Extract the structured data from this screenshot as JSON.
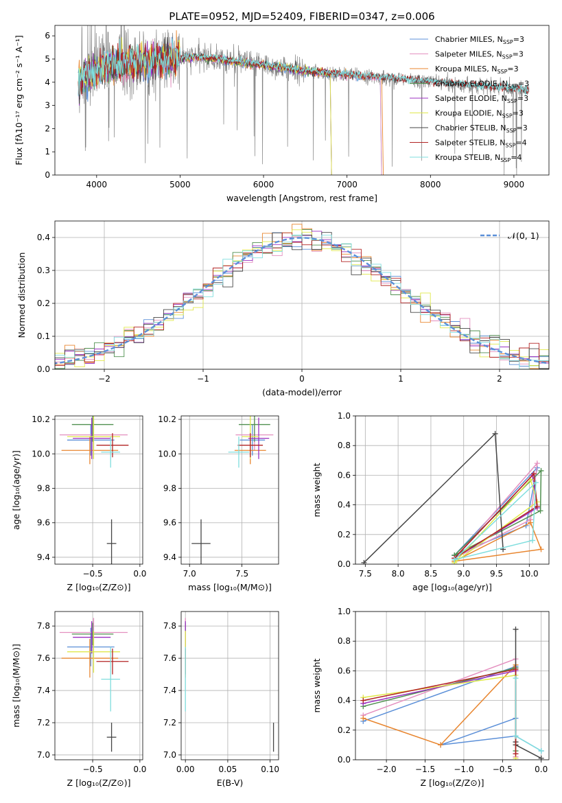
{
  "chart_data": [
    {
      "type": "line",
      "id": "spectrum",
      "title": "PLATE=0952, MJD=52409, FIBERID=0347, z=0.006",
      "xlabel": "wavelength [Angstrom, rest frame]",
      "ylabel": "Flux [fλ10⁻¹⁷ erg cm⁻² s⁻¹ A⁻¹]",
      "xlim": [
        3500,
        9420
      ],
      "ylim": [
        0,
        6.45
      ],
      "xticks": [
        4000,
        5000,
        6000,
        7000,
        8000,
        9000
      ],
      "yticks": [
        0,
        1,
        2,
        3,
        4,
        5,
        6
      ],
      "legend_position": "top-right",
      "data_trace": {
        "x_range": [
          3780,
          9180
        ],
        "color": "#808080"
      },
      "series": [
        {
          "name": "Chabrier MILES, NSSP=3",
          "label_main": "Chabrier MILES, N",
          "label_sub": "SSP",
          "label_tail": "=3",
          "color": "#5b8fd8",
          "x_end": 7400
        },
        {
          "name": "Salpeter MILES, NSSP=3",
          "label_main": "Salpeter MILES, N",
          "label_sub": "SSP",
          "label_tail": "=3",
          "color": "#e48fbf",
          "x_end": 7400
        },
        {
          "name": "Kroupa MILES, NSSP=3",
          "label_main": "Kroupa MILES, N",
          "label_sub": "SSP",
          "label_tail": "=3",
          "color": "#e8852e",
          "x_end": 7420
        },
        {
          "name": "Chabrier ELODIE, NSSP=3",
          "label_main": "Chabrier ELODIE, N",
          "label_sub": "SSP",
          "label_tail": "=3",
          "color": "#4f8f4f",
          "x_end": 6800
        },
        {
          "name": "Salpeter ELODIE, NSSP=3",
          "label_main": "Salpeter ELODIE, N",
          "label_sub": "SSP",
          "label_tail": "=3",
          "color": "#9b30c0",
          "x_end": 6800
        },
        {
          "name": "Kroupa ELODIE, NSSP=3",
          "label_main": "Kroupa ELODIE, N",
          "label_sub": "SSP",
          "label_tail": "=3",
          "color": "#e0e84a",
          "x_end": 6800
        },
        {
          "name": "Chabrier STELIB, NSSP=3",
          "label_main": "Chabrier STELIB, N",
          "label_sub": "SSP",
          "label_tail": "=3",
          "color": "#444444",
          "x_end": 9180
        },
        {
          "name": "Salpeter STELIB, NSSP=4",
          "label_main": "Salpeter STELIB, N",
          "label_sub": "SSP",
          "label_tail": "=4",
          "color": "#b22222",
          "x_end": 9180
        },
        {
          "name": "Kroupa STELIB, NSSP=4",
          "label_main": "Kroupa STELIB, N",
          "label_sub": "SSP",
          "label_tail": "=4",
          "color": "#7fdede",
          "x_end": 9180
        }
      ]
    },
    {
      "type": "histogram",
      "id": "residuals",
      "xlabel": "(data-model)/error",
      "ylabel": "Normed distribution",
      "xlim": [
        -2.5,
        2.5
      ],
      "ylim": [
        0,
        0.45
      ],
      "xticks": [
        -2,
        -1,
        0,
        1,
        2
      ],
      "yticks": [
        0.0,
        0.1,
        0.2,
        0.3,
        0.4
      ],
      "bin_width": 0.1,
      "grid": true,
      "legend_position": "top-right",
      "reference_curve": {
        "name": "N(0,1)",
        "label": "𝒩(0, 1)",
        "color": "#5b8fd8",
        "style": "dashed"
      }
    },
    {
      "type": "scatter",
      "id": "age-vs-z",
      "xlabel": "Z [log₁₀(Z/Z⊙)]",
      "ylabel": "age  [log₁₀(age/yr)]",
      "xlim": [
        -0.9,
        0.03
      ],
      "ylim": [
        9.36,
        10.22
      ],
      "xticks": [
        -0.5,
        0.0
      ],
      "yticks": [
        9.4,
        9.6,
        9.8,
        10.0,
        10.2
      ],
      "grid": true,
      "points": [
        {
          "x": -0.52,
          "y": 10.08,
          "xerr": 0.25,
          "yerr": 0.09,
          "color": "#5b8fd8"
        },
        {
          "x": -0.49,
          "y": 10.11,
          "xerr": 0.36,
          "yerr": 0.09,
          "color": "#e48fbf"
        },
        {
          "x": -0.53,
          "y": 10.02,
          "xerr": 0.3,
          "yerr": 0.08,
          "color": "#e8852e"
        },
        {
          "x": -0.5,
          "y": 10.17,
          "xerr": 0.22,
          "yerr": 0.1,
          "color": "#4f8f4f"
        },
        {
          "x": -0.51,
          "y": 10.09,
          "xerr": 0.2,
          "yerr": 0.12,
          "color": "#9b30c0"
        },
        {
          "x": -0.49,
          "y": 10.1,
          "xerr": 0.28,
          "yerr": 0.13,
          "color": "#e0e84a"
        },
        {
          "x": -0.3,
          "y": 9.48,
          "xerr": 0.05,
          "yerr": 0.14,
          "color": "#444444"
        },
        {
          "x": -0.29,
          "y": 10.05,
          "xerr": 0.17,
          "yerr": 0.07,
          "color": "#b22222"
        },
        {
          "x": -0.31,
          "y": 10.01,
          "xerr": 0.1,
          "yerr": 0.09,
          "color": "#7fdede"
        }
      ]
    },
    {
      "type": "scatter",
      "id": "age-vs-mass",
      "xlabel": "mass [log₁₀(M/M⊙)]",
      "ylabel": "",
      "xlim": [
        6.92,
        7.85
      ],
      "ylim": [
        9.36,
        10.22
      ],
      "xticks": [
        7.0,
        7.5
      ],
      "yticks": [
        9.4,
        9.6,
        9.8,
        10.0,
        10.2
      ],
      "grid": true,
      "points": [
        {
          "x": 7.6,
          "y": 10.08,
          "xerr": 0.12,
          "yerr": 0.09,
          "color": "#5b8fd8"
        },
        {
          "x": 7.62,
          "y": 10.11,
          "xerr": 0.18,
          "yerr": 0.09,
          "color": "#e48fbf"
        },
        {
          "x": 7.58,
          "y": 10.02,
          "xerr": 0.15,
          "yerr": 0.08,
          "color": "#e8852e"
        },
        {
          "x": 7.62,
          "y": 10.17,
          "xerr": 0.15,
          "yerr": 0.1,
          "color": "#4f8f4f"
        },
        {
          "x": 7.66,
          "y": 10.09,
          "xerr": 0.1,
          "yerr": 0.12,
          "color": "#9b30c0"
        },
        {
          "x": 7.58,
          "y": 10.1,
          "xerr": 0.08,
          "yerr": 0.13,
          "color": "#e0e84a"
        },
        {
          "x": 7.11,
          "y": 9.48,
          "xerr": 0.09,
          "yerr": 0.14,
          "color": "#444444"
        },
        {
          "x": 7.58,
          "y": 10.05,
          "xerr": 0.12,
          "yerr": 0.07,
          "color": "#b22222"
        },
        {
          "x": 7.47,
          "y": 10.01,
          "xerr": 0.1,
          "yerr": 0.09,
          "color": "#7fdede"
        }
      ]
    },
    {
      "type": "line",
      "id": "weight-vs-age",
      "xlabel": "age  [log₁₀(age/yr)]",
      "ylabel": "mass weight",
      "xlim": [
        7.35,
        10.3
      ],
      "ylim": [
        0,
        1.0
      ],
      "xticks": [
        7.5,
        8.0,
        8.5,
        9.0,
        9.5,
        10.0
      ],
      "yticks": [
        0.0,
        0.2,
        0.4,
        0.6,
        0.8,
        1.0
      ],
      "grid": true,
      "series": [
        {
          "color": "#5b8fd8",
          "x": [
            8.86,
            9.95,
            10.12,
            8.86
          ],
          "y": [
            0.06,
            0.26,
            0.65,
            0.06
          ]
        },
        {
          "color": "#e48fbf",
          "x": [
            8.86,
            10.02,
            10.12,
            8.86
          ],
          "y": [
            0.04,
            0.3,
            0.68,
            0.04
          ]
        },
        {
          "color": "#e8852e",
          "x": [
            8.86,
            10.02,
            10.18,
            8.86
          ],
          "y": [
            0.02,
            0.28,
            0.1,
            0.02
          ]
        },
        {
          "color": "#4f8f4f",
          "x": [
            8.86,
            10.17,
            10.18,
            8.86
          ],
          "y": [
            0.06,
            0.36,
            0.63,
            0.06
          ]
        },
        {
          "color": "#9b30c0",
          "x": [
            8.86,
            10.05,
            10.12,
            8.86
          ],
          "y": [
            0.04,
            0.6,
            0.38,
            0.04
          ]
        },
        {
          "color": "#e0e84a",
          "x": [
            8.86,
            10.02,
            10.12,
            8.86
          ],
          "y": [
            0.01,
            0.57,
            0.42,
            0.01
          ]
        },
        {
          "color": "#444444",
          "x": [
            7.48,
            9.48,
            9.6
          ],
          "y": [
            0.01,
            0.88,
            0.1
          ]
        },
        {
          "color": "#b22222",
          "x": [
            8.86,
            10.07,
            10.12,
            8.86
          ],
          "y": [
            0.04,
            0.61,
            0.39,
            0.04
          ]
        },
        {
          "color": "#7fdede",
          "x": [
            8.86,
            10.05,
            10.1,
            8.86
          ],
          "y": [
            0.03,
            0.16,
            0.55,
            0.03
          ]
        }
      ]
    },
    {
      "type": "scatter",
      "id": "mass-vs-z",
      "xlabel": "Z [log₁₀(Z/Z⊙)]",
      "ylabel": "mass [log₁₀(M/M⊙)]",
      "xlim": [
        -0.9,
        0.03
      ],
      "ylim": [
        6.97,
        7.89
      ],
      "xticks": [
        -0.5,
        0.0
      ],
      "yticks": [
        7.0,
        7.2,
        7.4,
        7.6,
        7.8
      ],
      "grid": true,
      "points": [
        {
          "x": -0.52,
          "y": 7.67,
          "xerr": 0.25,
          "yerr": 0.12,
          "color": "#5b8fd8"
        },
        {
          "x": -0.49,
          "y": 7.76,
          "xerr": 0.36,
          "yerr": 0.09,
          "color": "#e48fbf"
        },
        {
          "x": -0.53,
          "y": 7.6,
          "xerr": 0.3,
          "yerr": 0.12,
          "color": "#e8852e"
        },
        {
          "x": -0.5,
          "y": 7.75,
          "xerr": 0.22,
          "yerr": 0.07,
          "color": "#4f8f4f"
        },
        {
          "x": -0.51,
          "y": 7.73,
          "xerr": 0.2,
          "yerr": 0.1,
          "color": "#9b30c0"
        },
        {
          "x": -0.49,
          "y": 7.64,
          "xerr": 0.28,
          "yerr": 0.13,
          "color": "#e0e84a"
        },
        {
          "x": -0.3,
          "y": 7.11,
          "xerr": 0.05,
          "yerr": 0.09,
          "color": "#444444"
        },
        {
          "x": -0.29,
          "y": 7.58,
          "xerr": 0.17,
          "yerr": 0.08,
          "color": "#b22222"
        },
        {
          "x": -0.31,
          "y": 7.47,
          "xerr": 0.1,
          "yerr": 0.2,
          "color": "#7fdede"
        }
      ]
    },
    {
      "type": "scatter",
      "id": "mass-vs-ebv",
      "xlabel": "E(B-V)",
      "ylabel": "",
      "xlim": [
        -0.005,
        0.11
      ],
      "ylim": [
        6.97,
        7.89
      ],
      "xticks": [
        0.0,
        0.05,
        0.1
      ],
      "yticks": [
        7.0,
        7.2,
        7.4,
        7.6,
        7.8
      ],
      "grid": true,
      "points": [
        {
          "x": 0.0,
          "y": 7.67,
          "xerr": 0,
          "yerr": 0.12,
          "color": "#5b8fd8"
        },
        {
          "x": 0.0,
          "y": 7.76,
          "xerr": 0,
          "yerr": 0.09,
          "color": "#e48fbf"
        },
        {
          "x": 0.0,
          "y": 7.6,
          "xerr": 0,
          "yerr": 0.12,
          "color": "#e8852e"
        },
        {
          "x": 0.0,
          "y": 7.75,
          "xerr": 0,
          "yerr": 0.07,
          "color": "#4f8f4f"
        },
        {
          "x": 0.0,
          "y": 7.73,
          "xerr": 0,
          "yerr": 0.1,
          "color": "#9b30c0"
        },
        {
          "x": 0.0,
          "y": 7.64,
          "xerr": 0,
          "yerr": 0.13,
          "color": "#e0e84a"
        },
        {
          "x": 0.104,
          "y": 7.11,
          "xerr": 0,
          "yerr": 0.09,
          "color": "#444444"
        },
        {
          "x": 0.0,
          "y": 7.58,
          "xerr": 0,
          "yerr": 0.08,
          "color": "#b22222"
        },
        {
          "x": 0.0,
          "y": 7.47,
          "xerr": 0,
          "yerr": 0.2,
          "color": "#7fdede"
        }
      ]
    },
    {
      "type": "line",
      "id": "weight-vs-z",
      "xlabel": "Z [log₁₀(Z/Z⊙)]",
      "ylabel": "mass weight",
      "xlim": [
        -2.4,
        0.1
      ],
      "ylim": [
        0,
        1.0
      ],
      "xticks": [
        -2.0,
        -1.5,
        -1.0,
        -0.5,
        0.0
      ],
      "yticks": [
        0.0,
        0.2,
        0.4,
        0.6,
        0.8,
        1.0
      ],
      "grid": true,
      "series": [
        {
          "color": "#5b8fd8",
          "x": [
            -2.3,
            -0.33,
            -0.33,
            -1.3,
            -0.33,
            0.0
          ],
          "y": [
            0.26,
            0.63,
            0.28,
            0.1,
            0.16,
            0.06
          ]
        },
        {
          "color": "#e48fbf",
          "x": [
            -2.3,
            -0.33,
            -0.33
          ],
          "y": [
            0.3,
            0.68,
            0.02
          ]
        },
        {
          "color": "#e8852e",
          "x": [
            -2.3,
            -1.3,
            -0.33,
            -0.33
          ],
          "y": [
            0.28,
            0.1,
            0.64,
            0.1
          ]
        },
        {
          "color": "#4f8f4f",
          "x": [
            -2.3,
            -0.33,
            -0.33
          ],
          "y": [
            0.36,
            0.62,
            0.06
          ]
        },
        {
          "color": "#9b30c0",
          "x": [
            -2.3,
            -0.33,
            -0.33
          ],
          "y": [
            0.38,
            0.6,
            0.04
          ]
        },
        {
          "color": "#e0e84a",
          "x": [
            -2.3,
            -0.33,
            -0.33
          ],
          "y": [
            0.42,
            0.57,
            0.01
          ]
        },
        {
          "color": "#444444",
          "x": [
            -0.33,
            -0.33,
            -0.33,
            0.0
          ],
          "y": [
            0.88,
            0.12,
            0.1,
            0.01
          ]
        },
        {
          "color": "#b22222",
          "x": [
            -2.3,
            -0.33,
            -0.33
          ],
          "y": [
            0.4,
            0.61,
            0.04
          ]
        },
        {
          "color": "#7fdede",
          "x": [
            -0.33,
            -0.33,
            0.0
          ],
          "y": [
            0.55,
            0.16,
            0.06
          ]
        }
      ]
    }
  ]
}
